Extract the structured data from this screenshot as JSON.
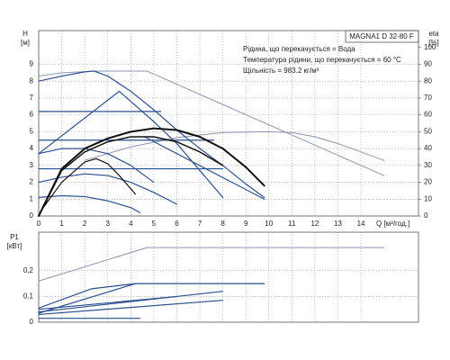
{
  "chart_data": [
    {
      "type": "line",
      "title": "MAGNA1 D 32-80 F",
      "annotations": [
        "Рідина, що перекачується = Вода",
        "Температура рідини, що перекачується = 60 °C",
        "Щільність = 983.2 кг/м³"
      ],
      "y_label": "H",
      "y_unit": "[м]",
      "y2_label": "eta",
      "y2_unit": "[%]",
      "x_label": "Q [м³/год.]",
      "xlim": [
        0,
        16.5
      ],
      "xticks": [
        0,
        1,
        2,
        3,
        4,
        5,
        6,
        7,
        8,
        9,
        10,
        11,
        12,
        13,
        14
      ],
      "ylim": [
        0,
        11
      ],
      "yticks": [
        0,
        1,
        2,
        3,
        4,
        5,
        6,
        7,
        8,
        9
      ],
      "y2lim": [
        0,
        110
      ],
      "y2ticks": [
        0,
        10,
        20,
        30,
        40,
        50,
        60,
        70,
        80,
        90,
        100
      ],
      "grid": true,
      "series": [
        {
          "color": "#8c93b0",
          "width": 1,
          "x": [
            0,
            1,
            2.5,
            4.7,
            15
          ],
          "values": [
            8.3,
            8.5,
            8.6,
            8.6,
            2.4
          ]
        },
        {
          "color": "#8c93b0",
          "width": 1,
          "axis": "y2",
          "x": [
            2,
            4,
            6,
            8,
            10,
            11,
            12,
            13,
            14,
            15
          ],
          "values": [
            33,
            41,
            46.5,
            49.5,
            50,
            49.5,
            47,
            43,
            38,
            33
          ]
        },
        {
          "color": "#2b4f8e",
          "width": 1.2,
          "x": [
            0,
            1,
            2,
            2.4,
            3,
            4,
            5,
            6,
            7,
            8,
            9,
            9.8
          ],
          "values": [
            8.0,
            8.3,
            8.55,
            8.6,
            8.3,
            7.4,
            6.3,
            5.1,
            4.0,
            3.0,
            1.9,
            1.1
          ]
        },
        {
          "color": "#2b4f8e",
          "width": 1.2,
          "x": [
            0,
            3.5,
            5,
            6,
            7,
            8
          ],
          "values": [
            3.7,
            7.4,
            5.6,
            4.3,
            2.7,
            1.1
          ]
        },
        {
          "color": "#2b4f8e",
          "width": 1.2,
          "x": [
            0,
            5.3
          ],
          "values": [
            6.2,
            6.2
          ]
        },
        {
          "color": "#2b4f8e",
          "width": 1.2,
          "x": [
            0,
            7.6
          ],
          "values": [
            4.5,
            4.5
          ]
        },
        {
          "color": "#2b4f8e",
          "width": 1.2,
          "x": [
            0,
            8
          ],
          "values": [
            2.8,
            2.8
          ]
        },
        {
          "color": "#2b4f8e",
          "width": 1.2,
          "x": [
            4.6,
            9.8
          ],
          "values": [
            4.7,
            1.0
          ]
        },
        {
          "color": "#2b4f8e",
          "width": 1.2,
          "x": [
            0,
            1,
            2,
            3,
            4,
            5
          ],
          "values": [
            3.7,
            4.0,
            4.0,
            3.7,
            3.0,
            2.0
          ]
        },
        {
          "color": "#2b4f8e",
          "width": 1.2,
          "x": [
            0,
            1,
            2,
            3,
            4,
            5,
            6
          ],
          "values": [
            2.0,
            2.3,
            2.5,
            2.4,
            2.0,
            1.4,
            0.7
          ]
        },
        {
          "color": "#2b4f8e",
          "width": 1.2,
          "x": [
            0,
            1,
            2,
            3,
            4,
            4.4
          ],
          "values": [
            1.1,
            1.2,
            1.15,
            0.9,
            0.5,
            0.2
          ]
        },
        {
          "color": "#111111",
          "width": 2,
          "axis": "y2",
          "x": [
            0,
            1,
            2,
            3,
            4,
            5,
            6,
            7,
            8,
            9,
            9.8
          ],
          "values": [
            0,
            28,
            40,
            46,
            50,
            52,
            51,
            47,
            40,
            29,
            18
          ]
        },
        {
          "color": "#111111",
          "width": 1.5,
          "axis": "y2",
          "x": [
            0,
            1,
            2,
            3,
            4,
            5,
            6,
            7,
            8
          ],
          "values": [
            0,
            27,
            38,
            44,
            47,
            47,
            44,
            38,
            30
          ]
        },
        {
          "color": "#111111",
          "width": 1.2,
          "axis": "y2",
          "x": [
            0.2,
            1,
            2,
            2.5,
            3,
            3.5,
            4.2
          ],
          "values": [
            5,
            20,
            32,
            34,
            31,
            24,
            13
          ]
        }
      ]
    },
    {
      "type": "line",
      "y_label": "P1",
      "y_unit": "[кВт]",
      "xlim": [
        0,
        16.5
      ],
      "xticks": [
        0,
        1,
        2,
        3,
        4,
        5,
        6,
        7,
        8,
        9,
        10,
        11,
        12,
        13,
        14
      ],
      "ylim": [
        0,
        0.35
      ],
      "yticks": [
        0,
        {
          "value": 0.1,
          "label": "0,1"
        },
        {
          "value": 0.2,
          "label": "0,2"
        }
      ],
      "grid": true,
      "series": [
        {
          "color": "#8c93b0",
          "width": 1,
          "x": [
            0,
            4.7,
            15
          ],
          "values": [
            0.16,
            0.29,
            0.29
          ]
        },
        {
          "color": "#2b4f8e",
          "width": 1.2,
          "x": [
            0,
            4.2,
            9.8
          ],
          "values": [
            0.035,
            0.15,
            0.15
          ]
        },
        {
          "color": "#2b4f8e",
          "width": 1.2,
          "x": [
            0,
            2.3,
            4.2
          ],
          "values": [
            0.055,
            0.13,
            0.15
          ]
        },
        {
          "color": "#2b4f8e",
          "width": 1.2,
          "x": [
            0,
            6
          ],
          "values": [
            0.05,
            0.1
          ]
        },
        {
          "color": "#2b4f8e",
          "width": 1.2,
          "x": [
            0,
            8
          ],
          "values": [
            0.04,
            0.12
          ]
        },
        {
          "color": "#2b4f8e",
          "width": 1.2,
          "x": [
            0,
            8
          ],
          "values": [
            0.03,
            0.085
          ]
        },
        {
          "color": "#2b4f8e",
          "width": 1.2,
          "x": [
            0,
            4.4
          ],
          "values": [
            0.015,
            0.015
          ]
        }
      ]
    }
  ]
}
